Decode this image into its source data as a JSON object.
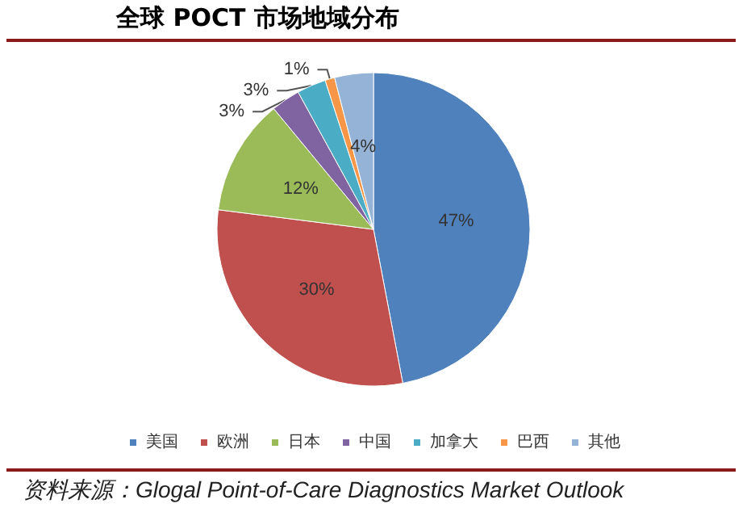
{
  "chart_data": {
    "type": "pie",
    "title": "全球 POCT 市场地域分布",
    "categories": [
      "美国",
      "欧洲",
      "日本",
      "中国",
      "加拿大",
      "巴西",
      "其他"
    ],
    "values": [
      47,
      30,
      12,
      3,
      3,
      1,
      4
    ],
    "value_labels": [
      "47%",
      "30%",
      "12%",
      "3%",
      "3%",
      "1%",
      "4%"
    ],
    "colors": [
      "#4f81bd",
      "#c0504d",
      "#9bbb59",
      "#8064a2",
      "#4bacc6",
      "#f79646",
      "#95b3d7"
    ],
    "legend": "bottom",
    "annotations": [
      "资料来源：Glogal Point-of-Care Diagnostics Market Outlook"
    ]
  }
}
